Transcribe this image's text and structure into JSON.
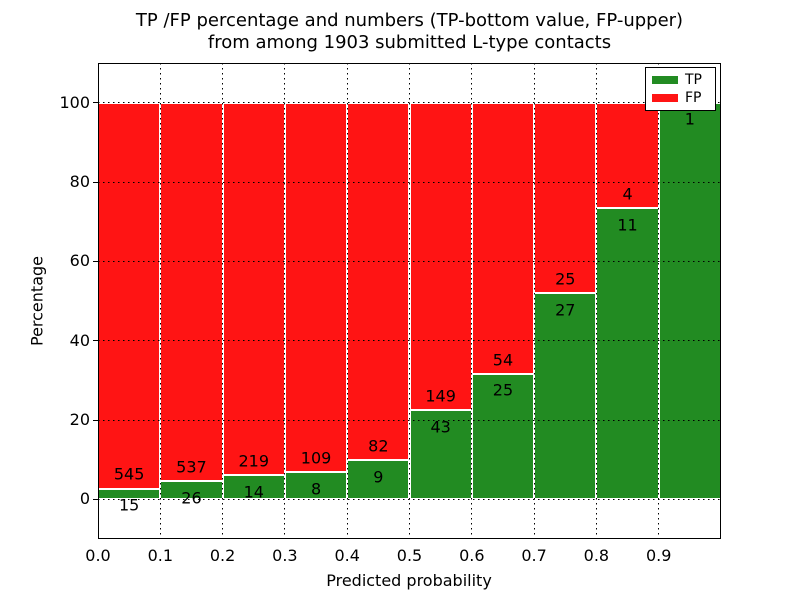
{
  "figure": {
    "title_line1": "TP /FP percentage and numbers (TP-bottom value, FP-upper)",
    "title_line2": "from among 1903 submitted L-type contacts"
  },
  "chart_data": {
    "type": "bar",
    "stacked": true,
    "normalized_to_percent": true,
    "title": "TP /FP percentage and numbers (TP-bottom value, FP-upper)\nfrom among 1903 submitted L-type contacts",
    "total_contacts": 1903,
    "xlabel": "Predicted probability",
    "ylabel": "Percentage",
    "xlim": [
      0.0,
      1.0
    ],
    "ylim": [
      -10,
      110
    ],
    "bin_width": 0.1,
    "categories": [
      "0.0-0.1",
      "0.1-0.2",
      "0.2-0.3",
      "0.3-0.4",
      "0.4-0.5",
      "0.5-0.6",
      "0.6-0.7",
      "0.7-0.8",
      "0.8-0.9",
      "0.9-1.0"
    ],
    "series": [
      {
        "name": "TP",
        "color": "#228b22",
        "counts": [
          15,
          26,
          14,
          8,
          9,
          43,
          25,
          27,
          11,
          1
        ]
      },
      {
        "name": "FP",
        "color": "#ff1414",
        "counts": [
          545,
          537,
          219,
          109,
          82,
          149,
          54,
          25,
          4,
          0
        ]
      }
    ],
    "tp_percent": [
      2.7,
      4.6,
      6.0,
      6.8,
      9.9,
      22.4,
      31.6,
      51.9,
      73.3,
      100.0
    ],
    "xticks": [
      "0.0",
      "0.1",
      "0.2",
      "0.3",
      "0.4",
      "0.5",
      "0.6",
      "0.7",
      "0.8",
      "0.9"
    ],
    "yticks": [
      0,
      20,
      40,
      60,
      80,
      100
    ],
    "grid": "dotted",
    "legend_position": "upper right",
    "legend": [
      {
        "label": "TP",
        "color": "#228b22"
      },
      {
        "label": "FP",
        "color": "#ff1414"
      }
    ]
  }
}
